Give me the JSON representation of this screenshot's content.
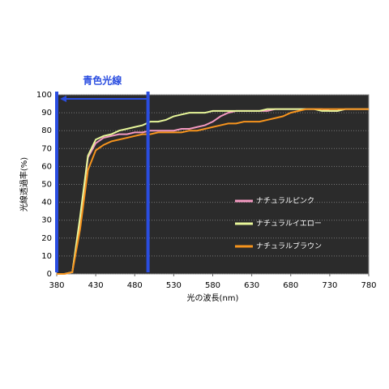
{
  "chart_data": {
    "type": "line",
    "x_label": "光の波長(nm)",
    "y_label": "光線透過率(%)",
    "annotation": {
      "text": "青色光線",
      "x_range": [
        380,
        497
      ],
      "color": "#2a4de0"
    },
    "x": [
      380,
      390,
      400,
      410,
      420,
      430,
      440,
      450,
      460,
      470,
      480,
      490,
      500,
      510,
      520,
      530,
      540,
      550,
      560,
      570,
      580,
      590,
      600,
      610,
      620,
      630,
      640,
      650,
      660,
      670,
      680,
      690,
      700,
      710,
      720,
      730,
      740,
      750,
      760,
      770,
      780
    ],
    "series": [
      {
        "name": "ナチュラルピンク",
        "color": "#f49ac1",
        "values": [
          0,
          0,
          1,
          30,
          65,
          73,
          76,
          77,
          78,
          78,
          79,
          79,
          80,
          80,
          80,
          80,
          81,
          81,
          82,
          83,
          85,
          88,
          90,
          91,
          91,
          91,
          91,
          91,
          92,
          92,
          92,
          92,
          92,
          92,
          92,
          91,
          91,
          92,
          92,
          92,
          92
        ]
      },
      {
        "name": "ナチュラルイエロー",
        "color": "#e8f79a",
        "values": [
          0,
          0,
          1,
          32,
          66,
          75,
          77,
          78,
          80,
          81,
          82,
          83,
          85,
          85,
          86,
          88,
          89,
          90,
          90,
          90,
          91,
          91,
          91,
          91,
          91,
          91,
          91,
          92,
          92,
          92,
          92,
          92,
          92,
          92,
          91,
          91,
          91,
          92,
          92,
          92,
          92
        ]
      },
      {
        "name": "ナチュラルブラウン",
        "color": "#f7941d",
        "values": [
          0,
          0,
          1,
          25,
          58,
          69,
          72,
          74,
          75,
          76,
          77,
          78,
          78,
          79,
          79,
          79,
          79,
          80,
          80,
          81,
          82,
          83,
          84,
          84,
          85,
          85,
          85,
          86,
          87,
          88,
          90,
          91,
          92,
          92,
          92,
          92,
          92,
          92,
          92,
          92,
          92
        ]
      }
    ],
    "xlim": [
      380,
      780
    ],
    "xticks": [
      380,
      430,
      480,
      530,
      580,
      630,
      680,
      730,
      780
    ],
    "ylim": [
      0,
      100
    ],
    "yticks": [
      0,
      10,
      20,
      30,
      40,
      50,
      60,
      70,
      80,
      90,
      100
    ],
    "grid": true,
    "legend": "center-right",
    "background": "#2b2b2b"
  }
}
